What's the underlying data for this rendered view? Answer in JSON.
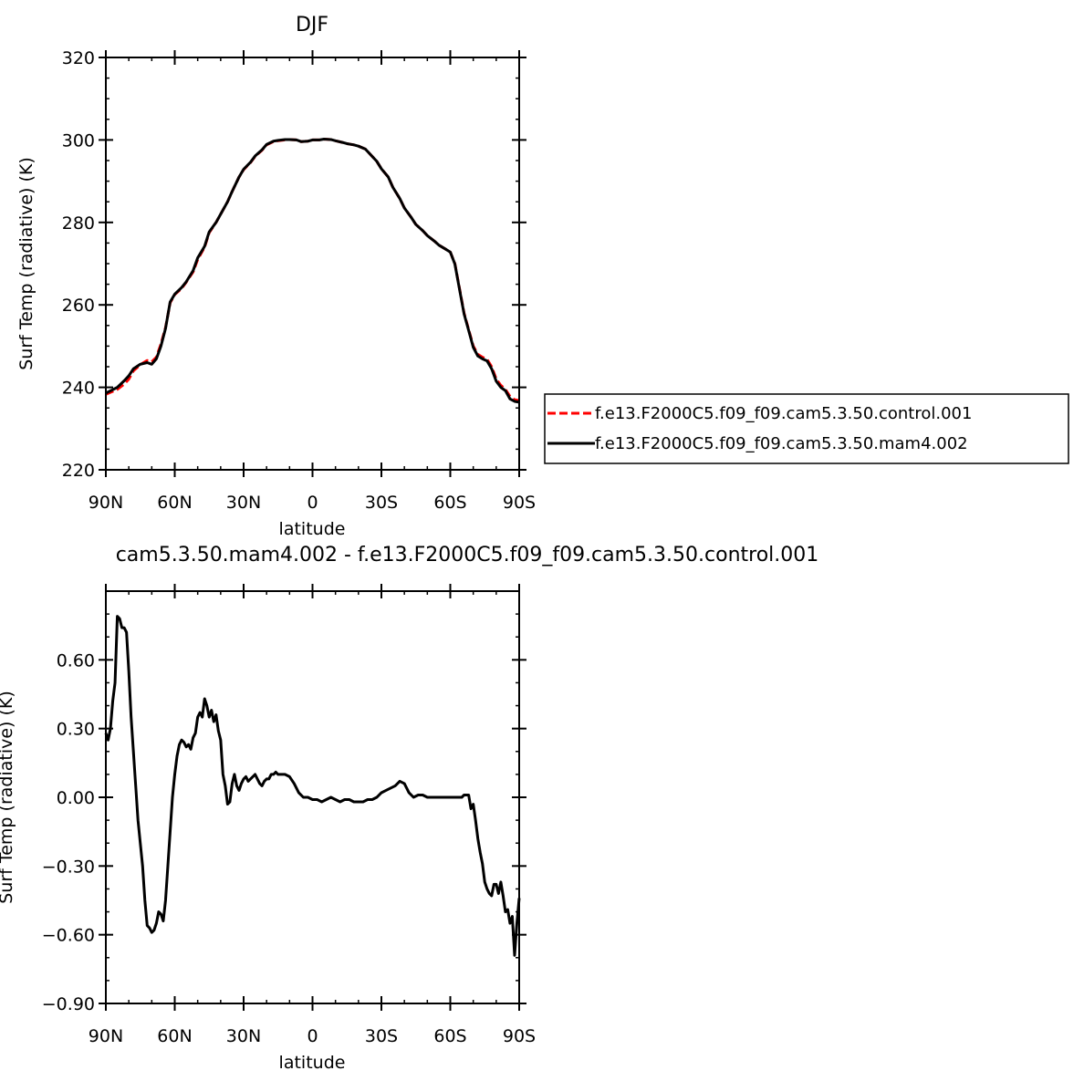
{
  "chart_data": [
    {
      "type": "line",
      "title": "DJF",
      "xlabel": "latitude",
      "ylabel": "Surf Temp (radiative) (K)",
      "xlim": [
        90,
        -90
      ],
      "ylim": [
        220,
        320
      ],
      "xticks": [
        90,
        60,
        30,
        0,
        -30,
        -60,
        -90
      ],
      "xtick_labels": [
        "90N",
        "60N",
        "30N",
        "0",
        "30S",
        "60S",
        "90S"
      ],
      "yticks": [
        220,
        240,
        260,
        280,
        300,
        320
      ],
      "ytick_labels": [
        "220",
        "240",
        "260",
        "280",
        "300",
        "320"
      ],
      "legend_position": "right",
      "series": [
        {
          "name": "f.e13.F2000C5.f09_f09.cam5.3.50.control.001",
          "color": "#ff0000",
          "dash": "dashed",
          "x": [
            90,
            85,
            82,
            80,
            78,
            75,
            72,
            70,
            68,
            66,
            64,
            62,
            60,
            57,
            55,
            52,
            50,
            47,
            45,
            42,
            40,
            37,
            35,
            32,
            30,
            27,
            25,
            22,
            20,
            17,
            15,
            12,
            10,
            7,
            5,
            2,
            0,
            -3,
            -5,
            -8,
            -10,
            -13,
            -15,
            -18,
            -20,
            -23,
            -25,
            -28,
            -30,
            -33,
            -35,
            -38,
            -40,
            -43,
            -45,
            -48,
            -50,
            -53,
            -55,
            -58,
            -60,
            -62,
            -64,
            -66,
            -68,
            -70,
            -72,
            -74,
            -76,
            -78,
            -80,
            -82,
            -84,
            -86,
            -88,
            -90
          ],
          "values": [
            238.3,
            239.5,
            240.8,
            242.0,
            244.0,
            245.5,
            246.5,
            246.2,
            247.3,
            250.5,
            254.5,
            260.5,
            262.5,
            264.0,
            265.5,
            268.0,
            271.0,
            274.0,
            277.5,
            280.0,
            282.0,
            285.0,
            287.5,
            291.0,
            292.8,
            294.5,
            296.0,
            297.5,
            298.8,
            299.6,
            299.8,
            300.0,
            300.1,
            300.0,
            299.6,
            299.7,
            300.0,
            300.0,
            300.2,
            300.1,
            299.8,
            299.4,
            299.1,
            298.8,
            298.5,
            297.8,
            296.6,
            294.8,
            293.0,
            291.0,
            288.5,
            285.8,
            283.5,
            281.2,
            279.5,
            278.0,
            276.8,
            275.5,
            274.5,
            273.5,
            272.8,
            270.0,
            264.0,
            258.0,
            254.0,
            250.0,
            248.0,
            247.3,
            246.8,
            245.0,
            242.0,
            240.5,
            239.5,
            237.8,
            237.0,
            236.8
          ]
        },
        {
          "name": "f.e13.F2000C5.f09_f09.cam5.3.50.mam4.002",
          "color": "#000000",
          "dash": "solid",
          "x": [
            90,
            85,
            82,
            80,
            78,
            75,
            72,
            70,
            68,
            66,
            64,
            62,
            60,
            57,
            55,
            52,
            50,
            47,
            45,
            42,
            40,
            37,
            35,
            32,
            30,
            27,
            25,
            22,
            20,
            17,
            15,
            12,
            10,
            7,
            5,
            2,
            0,
            -3,
            -5,
            -8,
            -10,
            -13,
            -15,
            -18,
            -20,
            -23,
            -25,
            -28,
            -30,
            -33,
            -35,
            -38,
            -40,
            -43,
            -45,
            -48,
            -50,
            -53,
            -55,
            -58,
            -60,
            -62,
            -64,
            -66,
            -68,
            -70,
            -72,
            -74,
            -76,
            -78,
            -80,
            -82,
            -84,
            -86,
            -88,
            -90
          ],
          "values": [
            238.6,
            240.0,
            241.6,
            242.8,
            244.5,
            245.6,
            246.0,
            245.6,
            246.9,
            250.0,
            254.3,
            260.7,
            262.6,
            264.2,
            265.6,
            268.3,
            271.4,
            274.2,
            277.7,
            280.0,
            282.0,
            285.0,
            287.5,
            291.0,
            292.9,
            294.6,
            296.1,
            297.6,
            298.9,
            299.7,
            299.9,
            300.1,
            300.1,
            300.0,
            299.6,
            299.7,
            300.0,
            300.0,
            300.2,
            300.1,
            299.8,
            299.4,
            299.1,
            298.8,
            298.5,
            297.8,
            296.6,
            294.8,
            293.0,
            291.0,
            288.5,
            285.8,
            283.5,
            281.2,
            279.5,
            278.0,
            276.8,
            275.5,
            274.5,
            273.5,
            272.8,
            269.9,
            263.8,
            257.8,
            253.8,
            249.7,
            247.6,
            246.9,
            246.4,
            244.5,
            241.5,
            240.0,
            239.2,
            237.2,
            236.6,
            236.4
          ]
        }
      ]
    },
    {
      "type": "line",
      "title": "cam5.3.50.mam4.002 - f.e13.F2000C5.f09_f09.cam5.3.50.control.001",
      "xlabel": "latitude",
      "ylabel": "Surf Temp (radiative) (K)",
      "xlim": [
        90,
        -90
      ],
      "ylim": [
        -0.9,
        0.9
      ],
      "xticks": [
        90,
        60,
        30,
        0,
        -30,
        -60,
        -90
      ],
      "xtick_labels": [
        "90N",
        "60N",
        "30N",
        "0",
        "30S",
        "60S",
        "90S"
      ],
      "yticks": [
        -0.9,
        -0.6,
        -0.3,
        0.0,
        0.3,
        0.6
      ],
      "ytick_labels": [
        "−0.90",
        "−0.60",
        "−0.30",
        "0.00",
        "0.30",
        "0.60"
      ],
      "series": [
        {
          "name": "",
          "color": "#000000",
          "dash": "solid",
          "x": [
            90,
            89,
            88,
            87,
            86,
            85,
            84,
            83,
            82,
            81,
            80,
            79,
            78,
            77,
            76,
            75,
            74,
            73,
            72,
            71,
            70,
            69,
            68,
            67,
            66,
            65,
            64,
            63,
            62,
            61,
            60,
            59,
            58,
            57,
            56,
            55,
            54,
            53,
            52,
            51,
            50,
            49,
            48,
            47,
            46,
            45,
            44,
            43,
            42,
            41,
            40,
            39,
            38,
            37,
            36,
            35,
            34,
            33,
            32,
            31,
            30,
            29,
            28,
            27,
            26,
            25,
            24,
            23,
            22,
            21,
            20,
            19,
            18,
            17,
            16,
            15,
            14,
            12,
            10,
            8,
            6,
            4,
            2,
            0,
            -2,
            -4,
            -6,
            -8,
            -10,
            -12,
            -14,
            -16,
            -18,
            -20,
            -22,
            -24,
            -26,
            -28,
            -30,
            -32,
            -34,
            -36,
            -38,
            -40,
            -42,
            -44,
            -46,
            -48,
            -50,
            -52,
            -54,
            -56,
            -58,
            -60,
            -62,
            -64,
            -65,
            -66,
            -67,
            -68,
            -69,
            -70,
            -71,
            -72,
            -73,
            -74,
            -75,
            -76,
            -77,
            -78,
            -79,
            -80,
            -81,
            -82,
            -83,
            -84,
            -85,
            -86,
            -87,
            -88,
            -89,
            -90
          ],
          "values": [
            0.28,
            0.25,
            0.3,
            0.42,
            0.5,
            0.79,
            0.78,
            0.74,
            0.74,
            0.72,
            0.55,
            0.35,
            0.2,
            0.05,
            -0.1,
            -0.2,
            -0.3,
            -0.45,
            -0.56,
            -0.57,
            -0.59,
            -0.58,
            -0.55,
            -0.5,
            -0.51,
            -0.54,
            -0.45,
            -0.3,
            -0.15,
            0.0,
            0.1,
            0.18,
            0.23,
            0.25,
            0.24,
            0.22,
            0.23,
            0.21,
            0.26,
            0.28,
            0.35,
            0.37,
            0.35,
            0.43,
            0.4,
            0.35,
            0.38,
            0.33,
            0.36,
            0.29,
            0.25,
            0.1,
            0.05,
            -0.03,
            -0.02,
            0.06,
            0.1,
            0.05,
            0.03,
            0.06,
            0.08,
            0.09,
            0.07,
            0.08,
            0.09,
            0.1,
            0.08,
            0.06,
            0.05,
            0.07,
            0.08,
            0.08,
            0.1,
            0.1,
            0.11,
            0.1,
            0.1,
            0.1,
            0.09,
            0.06,
            0.02,
            0.0,
            0.0,
            -0.01,
            -0.01,
            -0.02,
            -0.01,
            0.0,
            -0.01,
            -0.02,
            -0.01,
            -0.01,
            -0.02,
            -0.02,
            -0.02,
            -0.01,
            -0.01,
            0.0,
            0.02,
            0.03,
            0.04,
            0.05,
            0.07,
            0.06,
            0.02,
            0.0,
            0.01,
            0.01,
            0.0,
            0.0,
            0.0,
            0.0,
            0.0,
            0.0,
            0.0,
            0.0,
            0.0,
            0.01,
            0.01,
            0.01,
            -0.05,
            -0.03,
            -0.1,
            -0.18,
            -0.24,
            -0.29,
            -0.37,
            -0.4,
            -0.42,
            -0.43,
            -0.38,
            -0.38,
            -0.42,
            -0.37,
            -0.43,
            -0.5,
            -0.49,
            -0.55,
            -0.52,
            -0.69,
            -0.55,
            -0.44
          ]
        }
      ]
    }
  ]
}
